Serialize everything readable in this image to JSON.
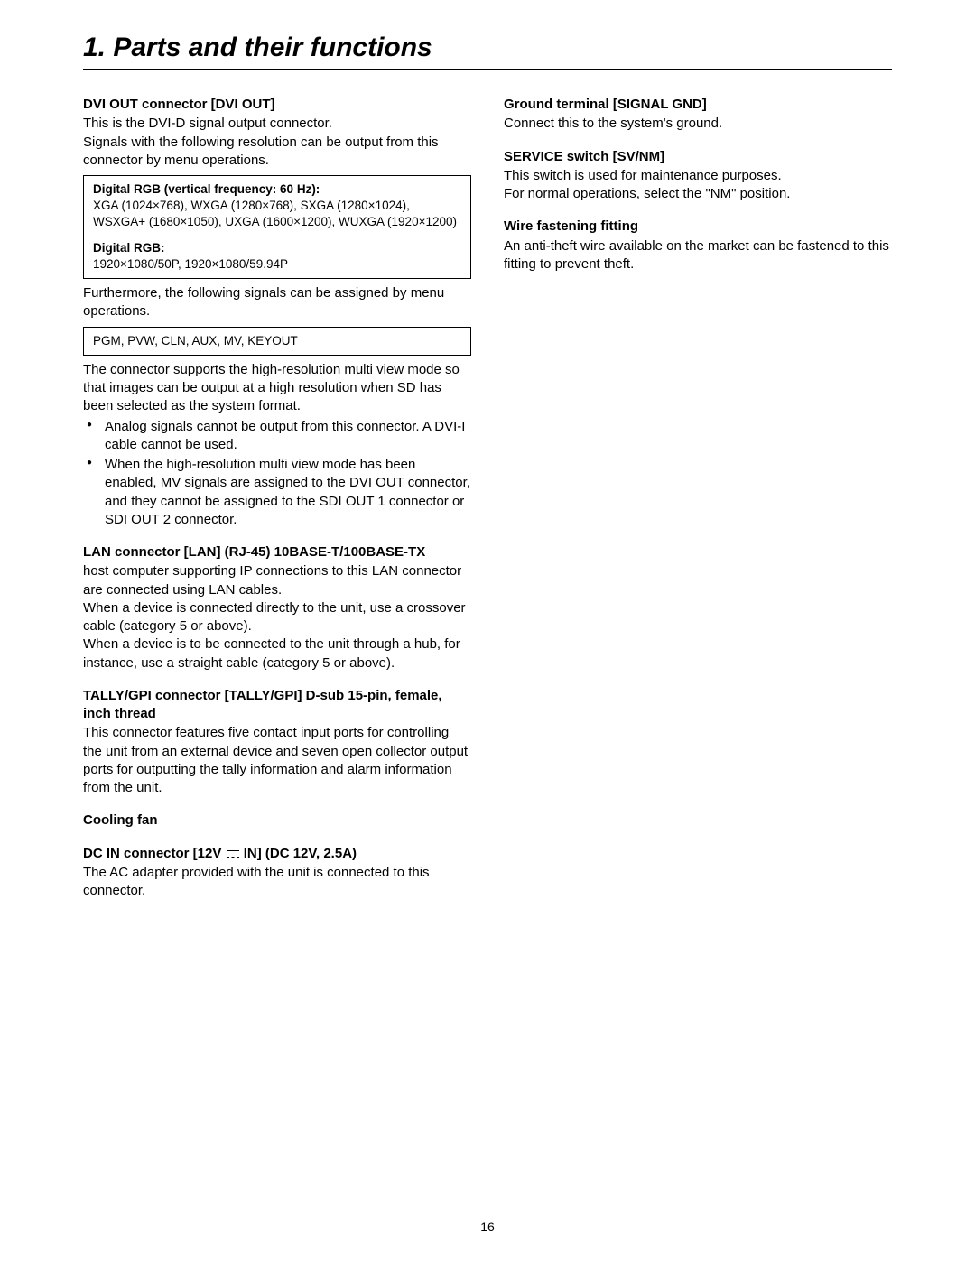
{
  "title": "1. Parts and their functions",
  "pageNumber": "16",
  "left": {
    "dviOut": {
      "heading": "DVI OUT connector [DVI OUT]",
      "p1": "This is the DVI-D signal output connector.",
      "p2": "Signals with the following resolution can be output from this connector by menu operations.",
      "box1_h1": "Digital RGB (vertical frequency: 60 Hz):",
      "box1_t1": "XGA (1024×768), WXGA (1280×768), SXGA (1280×1024), WSXGA+ (1680×1050), UXGA (1600×1200), WUXGA (1920×1200)",
      "box1_h2": "Digital RGB:",
      "box1_t2": "1920×1080/50P, 1920×1080/59.94P",
      "p3": "Furthermore, the following signals can be assigned by menu operations.",
      "box2": "PGM, PVW, CLN, AUX, MV, KEYOUT",
      "p4": "The connector supports the high-resolution multi view mode so that images can be output at a high resolution when SD has been selected as the system format.",
      "b1": "Analog signals cannot be output from this connector. A DVI-I cable cannot be used.",
      "b2": "When the high-resolution multi view mode has been enabled, MV signals are assigned to the DVI OUT connector, and they cannot be assigned to the SDI OUT 1 connector or SDI OUT 2 connector."
    },
    "lan": {
      "heading": "LAN connector [LAN] (RJ-45) 10BASE-T/100BASE-TX",
      "p1": "host computer supporting IP connections to this LAN connector are connected using LAN cables.",
      "p2": "When a device is connected directly to the unit, use a crossover cable (category 5 or above).",
      "p3": "When a device is to be connected to the unit through a hub, for instance, use a straight cable (category 5 or above)."
    },
    "tally": {
      "heading": "TALLY/GPI connector [TALLY/GPI] D-sub 15-pin, female, inch thread",
      "p1": "This connector features five contact input ports for controlling the unit from an external device and seven open collector output ports for outputting the tally information and alarm information from the unit."
    },
    "fan": {
      "heading": "Cooling fan"
    },
    "dcin": {
      "heading_pre": "DC IN connector [12V ",
      "heading_post": " IN] (DC 12V, 2.5A)",
      "p1": "The AC adapter provided with the unit is connected to this connector."
    }
  },
  "right": {
    "gnd": {
      "heading": "Ground terminal [SIGNAL GND]",
      "p1": "Connect this to the system's ground."
    },
    "svc": {
      "heading": "SERVICE switch [SV/NM]",
      "p1": "This switch is used for maintenance purposes.",
      "p2": "For normal operations, select the \"NM\" position."
    },
    "wire": {
      "heading": "Wire fastening fitting",
      "p1": "An anti-theft wire available on the market can be fastened to this fitting to prevent theft."
    }
  }
}
